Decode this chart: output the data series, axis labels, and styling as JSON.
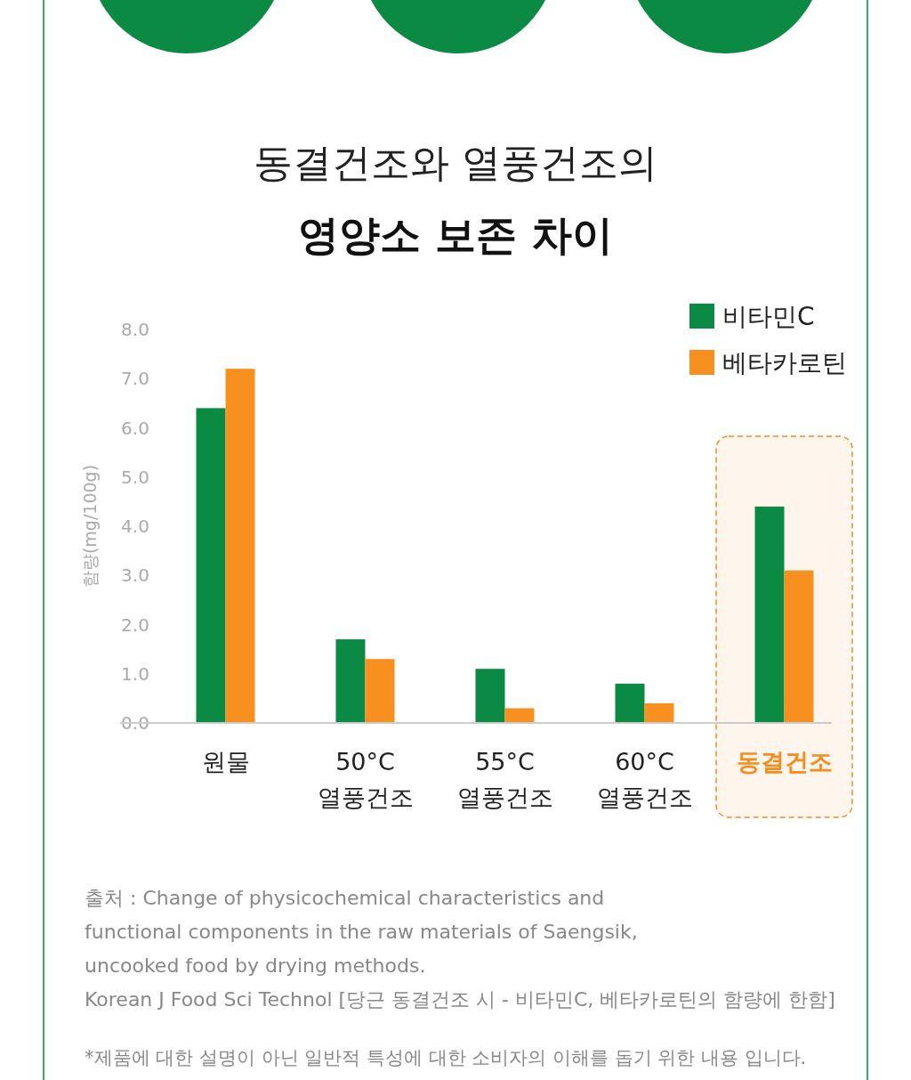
{
  "chart_data": {
    "type": "bar",
    "title": "동결건조와 열풍건조의",
    "subtitle": "영양소 보존 차이",
    "ylabel": "함량(mg/100g)",
    "categories": [
      "원물",
      "50°C\n열풍건조",
      "55°C\n열풍건조",
      "60°C\n열풍건조",
      "동결건조"
    ],
    "series": [
      {
        "name": "비타민C",
        "color": "#0a8a43",
        "values": [
          6.4,
          1.7,
          1.1,
          0.8,
          4.4
        ]
      },
      {
        "name": "베타카로틴",
        "color": "#f7901e",
        "values": [
          7.2,
          1.3,
          0.3,
          0.4,
          3.1
        ]
      }
    ],
    "ylim": [
      0,
      8
    ],
    "yticks": [
      {
        "value": 0,
        "label": "0.0"
      },
      {
        "value": 1,
        "label": "1.0"
      },
      {
        "value": 2,
        "label": "2.0"
      },
      {
        "value": 3,
        "label": "3.0"
      },
      {
        "value": 4,
        "label": "4.0"
      },
      {
        "value": 5,
        "label": "5.0"
      },
      {
        "value": 6,
        "label": "6.0"
      },
      {
        "value": 7,
        "label": "7.0"
      },
      {
        "value": 8,
        "label": "8.0"
      }
    ],
    "grid": false,
    "legend": "top right",
    "bands": [
      {
        "axis": "x",
        "from": "동결건조",
        "to": "동결건조",
        "color": "#f68b1f"
      }
    ],
    "annotations": [
      "출처 : Change of physicochemical characteristics and",
      "functional components in the raw materials of Saengsik,",
      "uncooked food by drying methods.",
      "Korean J Food Sci Technol [당근 동결건조 시 - 비타민C, 베타카로틴의 함량에 한함]",
      "*제품에 대한 설명이 아닌 일반적 특성에 대한 소비자의 이해를 돕기 위한 내용 입니다."
    ]
  }
}
